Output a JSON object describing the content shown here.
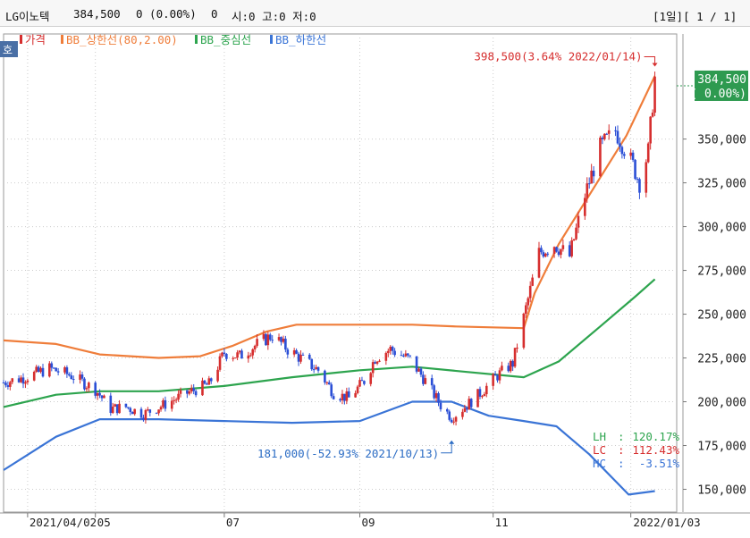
{
  "header": {
    "stock_name": "LG이노텍",
    "price": "384,500",
    "change": "0 (0.00%)",
    "volume": "0",
    "ohl": "시:0 고:0 저:0",
    "period_label": "[1일][ 1 / 1]",
    "corner_label": "호"
  },
  "legend": [
    {
      "label": "가격",
      "color": "#d62e2e"
    },
    {
      "label": "BB_상한선(80,2.00)",
      "color": "#ef7d3a"
    },
    {
      "label": "BB_중심선",
      "color": "#2da44e"
    },
    {
      "label": "BB_하한선",
      "color": "#3a74d6"
    }
  ],
  "annotations": {
    "high": "398,500(3.64% 2022/01/14)",
    "low": "181,000(-52.93% 2021/10/13)",
    "current_price": "384,500",
    "current_pct": "( 0.00%)"
  },
  "stats": [
    {
      "label": "LH",
      "value": "120.17%",
      "color": "#2da44e"
    },
    {
      "label": "LC",
      "value": "112.43%",
      "color": "#d62e2e"
    },
    {
      "label": "HC",
      "value": "-3.51%",
      "color": "#3a74d6"
    }
  ],
  "x_labels": [
    {
      "text": "2021/04/02",
      "date": "2021-04-02"
    },
    {
      "text": "05",
      "date": "2021-05-03"
    },
    {
      "text": "07",
      "date": "2021-07-01"
    },
    {
      "text": "09",
      "date": "2021-09-01"
    },
    {
      "text": "11",
      "date": "2021-11-01"
    },
    {
      "text": "2022/01/03",
      "date": "2022-01-03"
    }
  ],
  "chart_data": {
    "type": "line",
    "x_range": [
      "2021-03-22",
      "2022-01-24"
    ],
    "ylim": [
      137000,
      410000
    ],
    "y_ticks": [
      {
        "value": 150000,
        "label": "150,000"
      },
      {
        "value": 175000,
        "label": "175,000"
      },
      {
        "value": 200000,
        "label": "200,000"
      },
      {
        "value": 225000,
        "label": "225,000"
      },
      {
        "value": 250000,
        "label": "250,000"
      },
      {
        "value": 275000,
        "label": "275,000"
      },
      {
        "value": 300000,
        "label": "300,000"
      },
      {
        "value": 325000,
        "label": "325,000"
      },
      {
        "value": 350000,
        "label": "350,000"
      }
    ],
    "grid": true,
    "series": [
      {
        "name": "가격",
        "color": "#d62e2e",
        "points": [
          [
            "2021-03-22",
            211000
          ],
          [
            "2021-04-01",
            214000
          ],
          [
            "2021-04-12",
            219000
          ],
          [
            "2021-04-22",
            215000
          ],
          [
            "2021-05-03",
            207000
          ],
          [
            "2021-05-10",
            196000
          ],
          [
            "2021-05-17",
            197000
          ],
          [
            "2021-05-25",
            193000
          ],
          [
            "2021-06-03",
            198000
          ],
          [
            "2021-06-14",
            205000
          ],
          [
            "2021-06-24",
            210000
          ],
          [
            "2021-07-01",
            228000
          ],
          [
            "2021-07-08",
            226000
          ],
          [
            "2021-07-15",
            232000
          ],
          [
            "2021-07-23",
            238000
          ],
          [
            "2021-07-30",
            230000
          ],
          [
            "2021-08-06",
            224000
          ],
          [
            "2021-08-13",
            218000
          ],
          [
            "2021-08-20",
            205000
          ],
          [
            "2021-08-27",
            202000
          ],
          [
            "2021-09-03",
            212000
          ],
          [
            "2021-09-08",
            225000
          ],
          [
            "2021-09-15",
            230000
          ],
          [
            "2021-09-24",
            224000
          ],
          [
            "2021-10-01",
            212000
          ],
          [
            "2021-10-08",
            198000
          ],
          [
            "2021-10-13",
            191000
          ],
          [
            "2021-10-20",
            198000
          ],
          [
            "2021-10-27",
            206000
          ],
          [
            "2021-11-03",
            215000
          ],
          [
            "2021-11-10",
            222000
          ],
          [
            "2021-11-15",
            248000
          ],
          [
            "2021-11-22",
            285000
          ],
          [
            "2021-11-29",
            290000
          ],
          [
            "2021-12-06",
            283000
          ],
          [
            "2021-12-13",
            318000
          ],
          [
            "2021-12-20",
            345000
          ],
          [
            "2021-12-27",
            355000
          ],
          [
            "2022-01-04",
            335000
          ],
          [
            "2022-01-07",
            325000
          ],
          [
            "2022-01-11",
            343000
          ],
          [
            "2022-01-14",
            384500
          ]
        ]
      },
      {
        "name": "BB_상한선(80,2.00)",
        "color": "#ef7d3a",
        "points": [
          [
            "2021-03-22",
            235000
          ],
          [
            "2021-04-15",
            233000
          ],
          [
            "2021-05-05",
            227000
          ],
          [
            "2021-06-01",
            225000
          ],
          [
            "2021-06-20",
            226000
          ],
          [
            "2021-07-05",
            232000
          ],
          [
            "2021-07-20",
            240000
          ],
          [
            "2021-08-03",
            244000
          ],
          [
            "2021-09-01",
            244000
          ],
          [
            "2021-09-25",
            244000
          ],
          [
            "2021-10-15",
            243000
          ],
          [
            "2021-11-15",
            242000
          ],
          [
            "2021-11-20",
            262000
          ],
          [
            "2021-12-01",
            290000
          ],
          [
            "2021-12-15",
            318000
          ],
          [
            "2022-01-01",
            352000
          ],
          [
            "2022-01-14",
            386000
          ]
        ]
      },
      {
        "name": "BB_중심선",
        "color": "#2da44e",
        "points": [
          [
            "2021-03-22",
            197000
          ],
          [
            "2021-04-15",
            204000
          ],
          [
            "2021-05-05",
            206000
          ],
          [
            "2021-06-01",
            206000
          ],
          [
            "2021-07-01",
            209000
          ],
          [
            "2021-08-01",
            214000
          ],
          [
            "2021-09-01",
            218000
          ],
          [
            "2021-09-25",
            220000
          ],
          [
            "2021-10-20",
            217000
          ],
          [
            "2021-11-15",
            214000
          ],
          [
            "2021-12-01",
            223000
          ],
          [
            "2021-12-20",
            243000
          ],
          [
            "2022-01-05",
            260000
          ],
          [
            "2022-01-14",
            270000
          ]
        ]
      },
      {
        "name": "BB_하한선",
        "color": "#3a74d6",
        "points": [
          [
            "2021-03-22",
            161000
          ],
          [
            "2021-04-15",
            180000
          ],
          [
            "2021-05-05",
            190000
          ],
          [
            "2021-06-01",
            190000
          ],
          [
            "2021-07-01",
            189000
          ],
          [
            "2021-08-01",
            188000
          ],
          [
            "2021-09-01",
            189000
          ],
          [
            "2021-09-25",
            200000
          ],
          [
            "2021-10-13",
            200000
          ],
          [
            "2021-10-30",
            192000
          ],
          [
            "2021-11-15",
            189000
          ],
          [
            "2021-11-30",
            186000
          ],
          [
            "2021-12-15",
            170000
          ],
          [
            "2022-01-02",
            147000
          ],
          [
            "2022-01-14",
            149000
          ]
        ]
      }
    ]
  }
}
